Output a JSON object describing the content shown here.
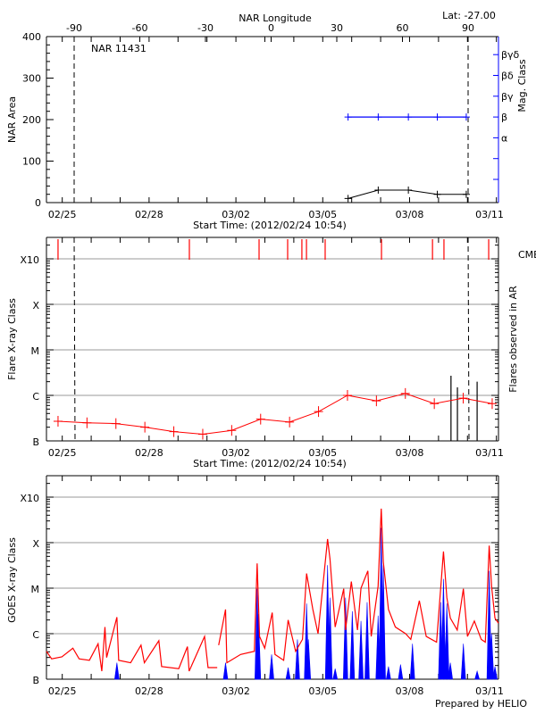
{
  "chart_data": [
    {
      "type": "line",
      "panel": "nar-area",
      "title": "NAR 11431",
      "header_right": "Lat: -27.00",
      "top_axis_label": "NAR Longitude",
      "top_axis_ticks": [
        -90,
        -60,
        -30,
        0,
        30,
        60,
        90
      ],
      "lon_range": [
        -103,
        104
      ],
      "xlabel": "Start Time: (2012/02/24 10:54)",
      "x_tick_labels": [
        "02/25",
        "02/28",
        "03/02",
        "03/05",
        "03/08",
        "03/11"
      ],
      "xlim": [
        "02/24 10:54",
        "03/11 02:00"
      ],
      "ylabel": "NAR Area",
      "ylim": [
        0,
        400
      ],
      "y_ticks": [
        0,
        100,
        200,
        300,
        400
      ],
      "right_axis_label": "Mag. Class",
      "right_axis_ticks": [
        "",
        "",
        "α",
        "β",
        "βγ",
        "βδ",
        "βγδ"
      ],
      "dashed_longitudes": [
        -90,
        90
      ],
      "area_series": {
        "color": "#000000",
        "points": [
          [
            "03/05 21:00",
            10
          ],
          [
            "03/06 22:00",
            30
          ],
          [
            "03/07 23:00",
            30
          ],
          [
            "03/08 23:00",
            20
          ],
          [
            "03/09 23:00",
            20
          ]
        ]
      },
      "mag_class_series": {
        "color": "#0000ff",
        "points": [
          [
            "03/05 21:00",
            "β"
          ],
          [
            "03/06 22:00",
            "β"
          ],
          [
            "03/07 23:00",
            "β"
          ],
          [
            "03/08 23:00",
            "β"
          ],
          [
            "03/09 23:00",
            "β"
          ]
        ]
      }
    },
    {
      "type": "line",
      "panel": "flare-class",
      "xlabel": "Start Time: (2012/02/24 10:54)",
      "x_tick_labels": [
        "02/25",
        "02/28",
        "03/02",
        "03/05",
        "03/08",
        "03/11"
      ],
      "ylabel": "Flare X-ray Class",
      "y_scale": "log",
      "y_ticks": [
        {
          "label": "B",
          "flux": 1e-07
        },
        {
          "label": "C",
          "flux": 1e-06
        },
        {
          "label": "M",
          "flux": 1e-05
        },
        {
          "label": "X",
          "flux": 0.0001
        },
        {
          "label": "X10",
          "flux": 0.001
        }
      ],
      "right_axis_label": "Flares observed in AR",
      "cme_label": "CMEs",
      "cme_color": "#ff0000",
      "grid": true,
      "dashed_longitudes": [
        -90,
        90
      ],
      "cme_times": [
        "02/24 20:30",
        "02/29 09:24",
        "03/02 19:12",
        "03/03 18:54",
        "03/04 06:42",
        "03/04 10:30",
        "03/05 02:00",
        "03/07 00:42",
        "03/08 19:00",
        "03/09 04:30",
        "03/10 17:36"
      ],
      "background_series": {
        "color": "#ff0000",
        "points": [
          [
            "02/24 20:30",
            2.7e-07
          ],
          [
            "02/25 20:30",
            2.5e-07
          ],
          [
            "02/26 20:30",
            2.4e-07
          ],
          [
            "02/27 20:30",
            2e-07
          ],
          [
            "02/28 20:30",
            1.6e-07
          ],
          [
            "02/29 20:30",
            1.4e-07
          ],
          [
            "03/01 20:30",
            1.7e-07
          ],
          [
            "03/02 20:30",
            3e-07
          ],
          [
            "03/03 20:30",
            2.6e-07
          ],
          [
            "03/04 20:30",
            4.4e-07
          ],
          [
            "03/05 20:30",
            1e-06
          ],
          [
            "03/06 20:30",
            7.6e-07
          ],
          [
            "03/07 20:30",
            1.1e-06
          ],
          [
            "03/08 20:30",
            6.6e-07
          ],
          [
            "03/09 20:30",
            8.7e-07
          ],
          [
            "03/10 20:30",
            6.6e-07
          ]
        ]
      },
      "ar_flares": {
        "color": "#000000",
        "points": [
          [
            "03/09 10:20",
            2.7e-06
          ],
          [
            "03/09 15:40",
            1.5e-06
          ],
          [
            "03/10 08:00",
            2e-06
          ]
        ]
      }
    },
    {
      "type": "line",
      "panel": "goes-xray",
      "ylabel": "GOES X-ray Class",
      "y_scale": "log",
      "y_ticks": [
        {
          "label": "B",
          "flux": 1e-07
        },
        {
          "label": "C",
          "flux": 1e-06
        },
        {
          "label": "M",
          "flux": 1e-05
        },
        {
          "label": "X",
          "flux": 0.0001
        },
        {
          "label": "X10",
          "flux": 0.001
        }
      ],
      "x_tick_labels": [
        "02/25",
        "02/28",
        "03/02",
        "03/05",
        "03/08",
        "03/11"
      ],
      "grid": true,
      "footer": "Prepared by HELIO",
      "series": [
        {
          "color": "#ff0000",
          "segments": [
            [
              [
                "02/24 10:54",
                4.1e-07
              ],
              [
                "02/24 15:12",
                2.8e-07
              ],
              [
                "02/24 23:42",
                3.1e-07
              ],
              [
                "02/25 08:48",
                4.8e-07
              ],
              [
                "02/25 14:00",
                2.8e-07
              ],
              [
                "02/25 22:30",
                2.6e-07
              ],
              [
                "02/26 05:42",
                6e-07
              ],
              [
                "02/26 08:48",
                1.5e-07
              ],
              [
                "02/26 11:24",
                1.4e-06
              ],
              [
                "02/26 12:48",
                3e-07
              ],
              [
                "02/26 21:18",
                2.3e-06
              ],
              [
                "02/26 22:48",
                2.6e-07
              ],
              [
                "02/27 08:42",
                2.3e-07
              ],
              [
                "02/27 17:18",
                5.6e-07
              ],
              [
                "02/27 20:06",
                2.3e-07
              ],
              [
                "02/28 08:06",
                7e-07
              ],
              [
                "02/28 10:24",
                1.9e-07
              ],
              [
                "02/29 00:36",
                1.7e-07
              ],
              [
                "02/29 07:48",
                5.2e-07
              ],
              [
                "02/29 09:12",
                1.5e-07
              ],
              [
                "02/29 22:00",
                8.7e-07
              ],
              [
                "03/01 00:54",
                1.8e-07
              ],
              [
                "03/01 08:30",
                1.8e-07
              ]
            ],
            [
              [
                "03/01 09:42",
                5.6e-07
              ],
              [
                "03/01 15:24",
                3.4e-06
              ],
              [
                "03/01 16:30",
                2.3e-07
              ],
              [
                "03/02 03:54",
                3.5e-07
              ],
              [
                "03/02 15:18",
                4.1e-07
              ],
              [
                "03/02 17:36",
                3.5e-05
              ],
              [
                "03/02 19:36",
                8.7e-07
              ],
              [
                "03/02 23:54",
                4.8e-07
              ],
              [
                "03/03 06:06",
                2.9e-06
              ],
              [
                "03/03 08:24",
                3.5e-07
              ],
              [
                "03/03 15:36",
                2.6e-07
              ],
              [
                "03/03 19:18",
                2e-06
              ],
              [
                "03/04 01:30",
                4.1e-07
              ],
              [
                "03/04 07:12",
                7.5e-07
              ],
              [
                "03/04 10:36",
                2.1e-05
              ],
              [
                "03/04 15:48",
                3.4e-06
              ],
              [
                "03/04 20:06",
                1e-06
              ],
              [
                "03/05 04:00",
                0.00012
              ],
              [
                "03/05 06:00",
                4.4e-05
              ],
              [
                "03/05 10:18",
                1.4e-06
              ],
              [
                "03/05 17:24",
                9.7e-06
              ],
              [
                "03/05 18:54",
                1.2e-06
              ],
              [
                "03/05 23:42",
                1.4e-05
              ],
              [
                "03/06 04:48",
                1.2e-06
              ],
              [
                "03/06 07:42",
                1e-05
              ],
              [
                "03/06 13:24",
                2.4e-05
              ],
              [
                "03/06 16:12",
                8.7e-07
              ],
              [
                "03/06 21:54",
                1.1e-05
              ],
              [
                "03/07 00:30",
                0.00056
              ],
              [
                "03/07 02:12",
                3.8e-05
              ],
              [
                "03/07 06:30",
                3.4e-06
              ],
              [
                "03/07 12:12",
                1.4e-06
              ],
              [
                "03/07 20:42",
                1e-06
              ],
              [
                "03/08 01:00",
                7.5e-07
              ],
              [
                "03/08 08:06",
                5.3e-06
              ],
              [
                "03/08 13:48",
                8.7e-07
              ],
              [
                "03/08 22:24",
                6.5e-07
              ],
              [
                "03/09 04:06",
                6.4e-05
              ],
              [
                "03/09 06:54",
                6.2e-06
              ],
              [
                "03/09 09:48",
                2.2e-06
              ],
              [
                "03/09 15:30",
                1.2e-06
              ],
              [
                "03/09 20:36",
                9.7e-06
              ],
              [
                "03/10 00:00",
                8.7e-07
              ],
              [
                "03/10 05:42",
                1.9e-06
              ],
              [
                "03/10 11:24",
                7.5e-07
              ],
              [
                "03/10 14:48",
                6.5e-07
              ],
              [
                "03/10 18:00",
                8.6e-05
              ],
              [
                "03/10 20:00",
                1.1e-05
              ],
              [
                "03/10 22:48",
                2.2e-06
              ],
              [
                "03/11 01:42",
                1.7e-06
              ]
            ]
          ]
        },
        {
          "color": "#0000ff",
          "peaks": [
            [
              "02/26 21:18",
              2.3e-07
            ],
            [
              "03/01 15:24",
              2.3e-07
            ],
            [
              "03/02 17:36",
              9.7e-06
            ],
            [
              "03/02 18:42",
              2.7e-06
            ],
            [
              "03/03 05:36",
              3.5e-07
            ],
            [
              "03/03 19:18",
              1.8e-07
            ],
            [
              "03/04 03:00",
              7.5e-07
            ],
            [
              "03/04 10:36",
              4.6e-06
            ],
            [
              "03/04 12:06",
              7.5e-07
            ],
            [
              "03/05 04:00",
              3.2e-05
            ],
            [
              "03/05 06:00",
              6.2e-06
            ],
            [
              "03/05 10:18",
              1.7e-07
            ],
            [
              "03/05 18:54",
              6.2e-06
            ],
            [
              "03/06 00:30",
              3.1e-06
            ],
            [
              "03/06 07:42",
              1.9e-06
            ],
            [
              "03/06 12:48",
              4.9e-06
            ],
            [
              "03/06 21:54",
              2.5e-06
            ],
            [
              "03/07 00:30",
              0.00021
            ],
            [
              "03/07 02:12",
              3.2e-05
            ],
            [
              "03/07 06:30",
              1.9e-07
            ],
            [
              "03/07 16:30",
              2.1e-07
            ],
            [
              "03/08 02:24",
              6e-07
            ],
            [
              "03/09 01:48",
              4.9e-06
            ],
            [
              "03/09 04:06",
              1.6e-05
            ],
            [
              "03/09 06:54",
              4.6e-06
            ],
            [
              "03/09 09:48",
              2.3e-07
            ],
            [
              "03/09 20:36",
              6e-07
            ],
            [
              "03/10 08:00",
              1.5e-07
            ],
            [
              "03/10 18:00",
              2.4e-05
            ],
            [
              "03/10 20:00",
              1e-06
            ],
            [
              "03/10 22:48",
              1.9e-07
            ]
          ]
        }
      ]
    }
  ]
}
